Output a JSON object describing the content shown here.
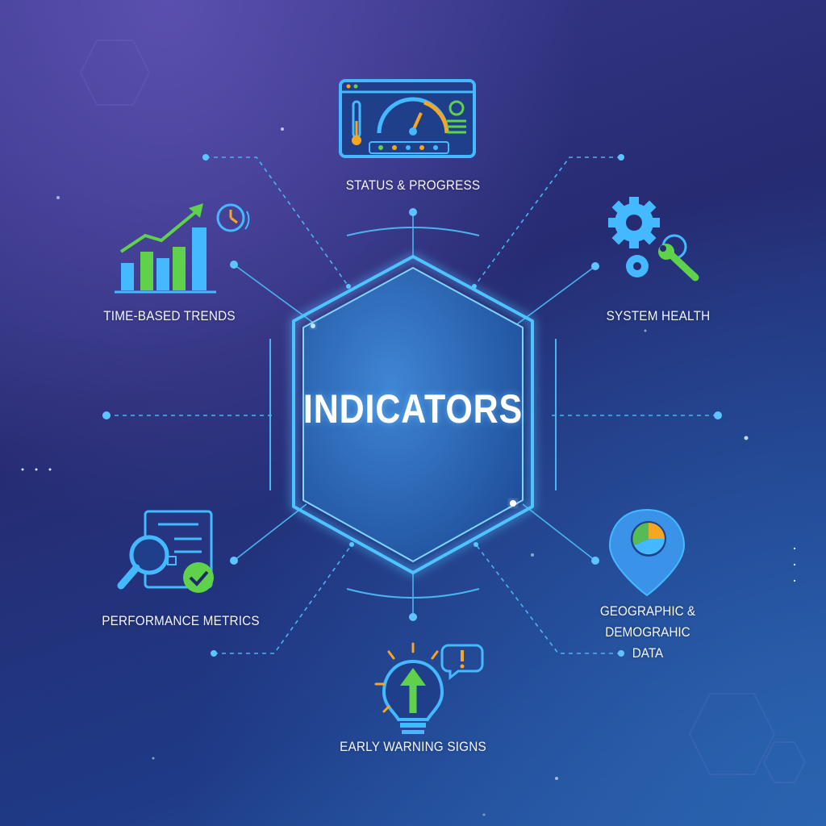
{
  "center": {
    "title": "INDICATORS"
  },
  "nodes": {
    "status": {
      "label": "STATUS & PROGRESS",
      "icon": "dashboard-gauge-icon"
    },
    "trends": {
      "label": "TIME-BASED TRENDS",
      "icon": "growth-chart-icon"
    },
    "health": {
      "label": "SYSTEM HEALTH",
      "icon": "gears-wrench-icon"
    },
    "performance": {
      "label": "PERFORMANCE METRICS",
      "icon": "magnifier-checklist-icon"
    },
    "geographic": {
      "label_line1": "GEOGRAPHIC & DEMOGRAHIC",
      "label_line2": "DATA",
      "icon": "map-pin-pie-icon"
    },
    "warning": {
      "label": "EARLY WARNING SIGNS",
      "icon": "lightbulb-alert-icon"
    }
  },
  "colors": {
    "accent_cyan": "#3fb8f5",
    "accent_green": "#5fd14a",
    "accent_orange": "#f5a623",
    "hexagon_fill": "#2f6fc0",
    "background": "#262b72"
  }
}
